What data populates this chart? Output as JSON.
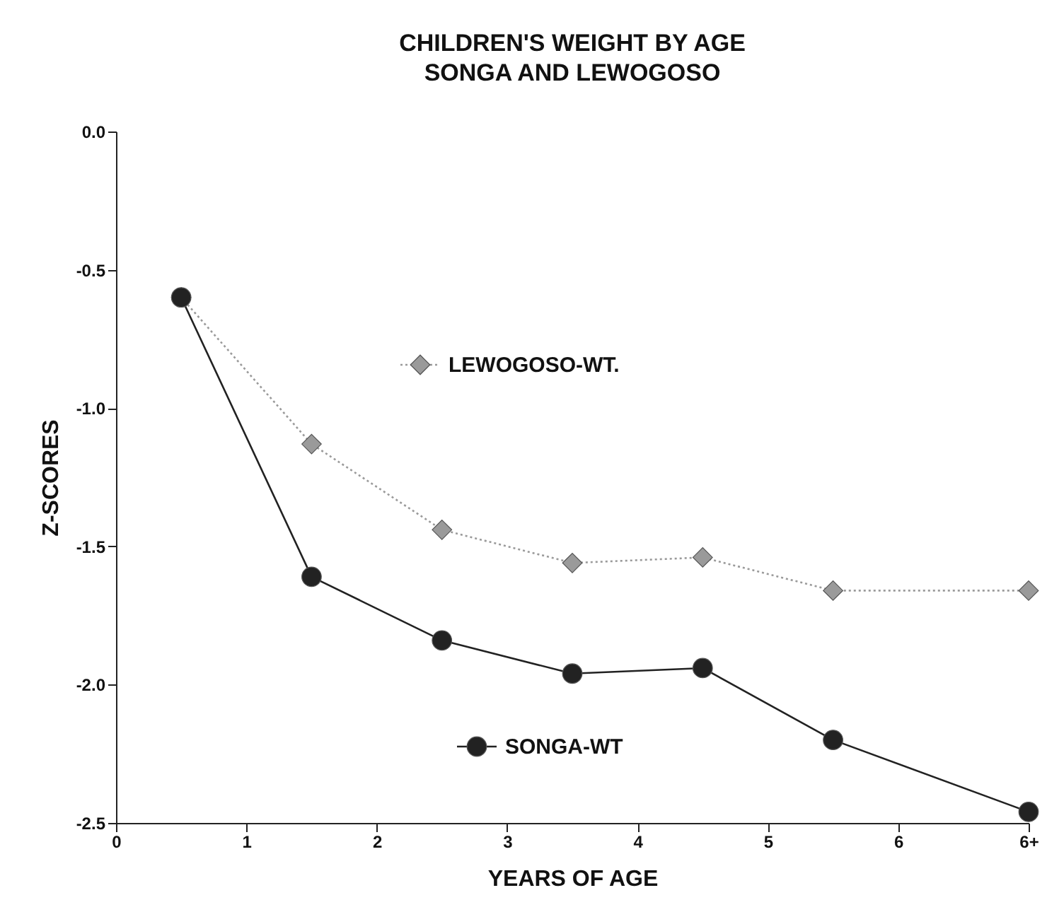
{
  "chart_data": {
    "type": "line",
    "title": "CHILDREN'S WEIGHT BY AGE",
    "subtitle": "SONGA AND LEWOGOSO",
    "xlabel": "YEARS OF AGE",
    "ylabel": "Z-SCORES",
    "x": [
      0.5,
      1.5,
      2.5,
      3.5,
      4.5,
      5.5,
      7
    ],
    "series": [
      {
        "name": "LEWOGOSO-WT.",
        "color": "#9a9a9a",
        "marker": "diamond",
        "line_style": "dotted",
        "values": [
          -0.6,
          -1.13,
          -1.44,
          -1.56,
          -1.54,
          -1.66,
          -1.66
        ]
      },
      {
        "name": "SONGA-WT",
        "color": "#222222",
        "marker": "circle",
        "line_style": "solid",
        "values": [
          -0.6,
          -1.61,
          -1.84,
          -1.96,
          -1.94,
          -2.2,
          -2.46
        ]
      }
    ],
    "xlim": [
      0,
      7
    ],
    "xticks": [
      0,
      1,
      2,
      3,
      4,
      5,
      6,
      {
        "value": 7,
        "label": "6+"
      }
    ],
    "legend": "left",
    "ylim": [
      -2.5,
      0
    ],
    "yticks": [
      {
        "value": 0,
        "label": "0.0"
      },
      -0.5,
      {
        "value": -1,
        "label": "-1.0"
      },
      -1.5,
      {
        "value": -2,
        "label": "-2.0"
      },
      -2.5
    ]
  }
}
